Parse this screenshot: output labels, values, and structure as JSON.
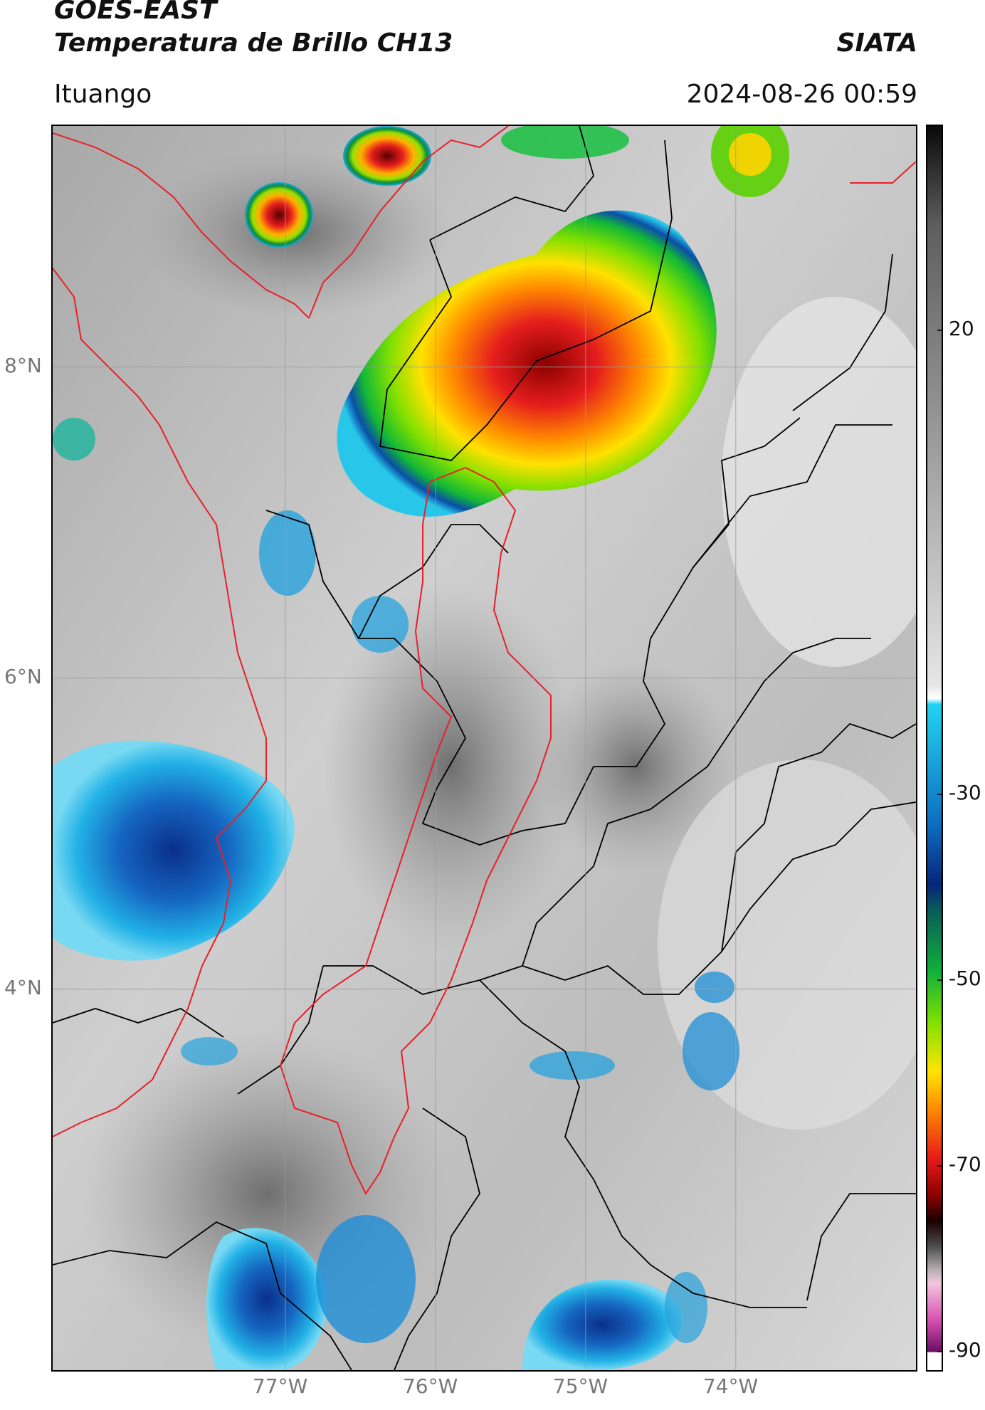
{
  "header": {
    "satellite": "GOES-EAST",
    "product": "Temperatura de Brillo CH13",
    "agency": "SIATA",
    "location": "Ituango",
    "datetime": "2024-08-26 00:59"
  },
  "map": {
    "lat_labels": [
      "8°N",
      "6°N",
      "4°N"
    ],
    "lon_labels": [
      "77°W",
      "76°W",
      "75°W",
      "74°W"
    ],
    "lat_values": [
      8,
      6,
      4
    ],
    "lon_values": [
      -77,
      -76,
      -75,
      -74
    ],
    "colors": {
      "international_border": "#000000",
      "department_border": "#000000",
      "antioquia_border": "#e8202a",
      "grid": "#9a9a9a"
    }
  },
  "colorbar": {
    "tick_labels": [
      "20",
      "-30",
      "-50",
      "-70",
      "-90"
    ],
    "tick_values": [
      20,
      -30,
      -50,
      -70,
      -90
    ],
    "range": [
      -92,
      42
    ],
    "units": ""
  }
}
